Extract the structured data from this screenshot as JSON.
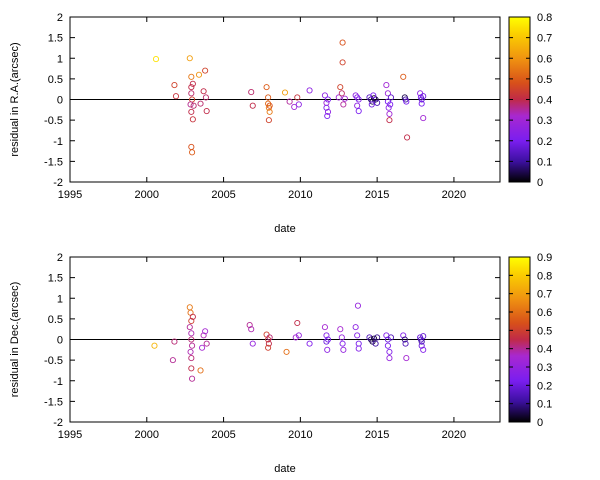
{
  "chart_data": [
    {
      "type": "scatter",
      "xlabel": "date",
      "ylabel": "residual in R.A.(arcsec)",
      "xlim": [
        1995,
        2023
      ],
      "ylim": [
        -2,
        2
      ],
      "xticks": [
        "1995",
        "2000",
        "2005",
        "2010",
        "2015",
        "2020"
      ],
      "yticks": [
        "-2",
        "-1.5",
        "-1",
        "-0.5",
        "0",
        "0.5",
        "1",
        "1.5",
        "2"
      ],
      "colorbar": {
        "range": [
          0,
          0.8
        ],
        "ticks": [
          "0",
          "0.1",
          "0.2",
          "0.3",
          "0.4",
          "0.5",
          "0.6",
          "0.7",
          "0.8"
        ]
      },
      "zero_line": 0,
      "points": [
        {
          "x": 2000.6,
          "y": 0.98,
          "c": 0.75
        },
        {
          "x": 2001.8,
          "y": 0.35,
          "c": 0.45
        },
        {
          "x": 2001.9,
          "y": 0.08,
          "c": 0.42
        },
        {
          "x": 2002.8,
          "y": 1.0,
          "c": 0.62
        },
        {
          "x": 2002.9,
          "y": 0.55,
          "c": 0.55
        },
        {
          "x": 2002.9,
          "y": 0.3,
          "c": 0.4
        },
        {
          "x": 2002.9,
          "y": 0.15,
          "c": 0.38
        },
        {
          "x": 2002.95,
          "y": 0.0,
          "c": 0.45
        },
        {
          "x": 2002.85,
          "y": -0.12,
          "c": 0.36
        },
        {
          "x": 2002.9,
          "y": -0.3,
          "c": 0.4
        },
        {
          "x": 2003.0,
          "y": -0.48,
          "c": 0.42
        },
        {
          "x": 2002.9,
          "y": -1.15,
          "c": 0.48
        },
        {
          "x": 2002.95,
          "y": -1.28,
          "c": 0.5
        },
        {
          "x": 2003.0,
          "y": 0.38,
          "c": 0.4
        },
        {
          "x": 2003.05,
          "y": -0.15,
          "c": 0.38
        },
        {
          "x": 2003.4,
          "y": 0.6,
          "c": 0.6
        },
        {
          "x": 2003.5,
          "y": -0.1,
          "c": 0.38
        },
        {
          "x": 2003.7,
          "y": 0.2,
          "c": 0.4
        },
        {
          "x": 2003.8,
          "y": 0.7,
          "c": 0.45
        },
        {
          "x": 2003.9,
          "y": -0.28,
          "c": 0.4
        },
        {
          "x": 2003.85,
          "y": 0.05,
          "c": 0.38
        },
        {
          "x": 2006.8,
          "y": 0.18,
          "c": 0.38
        },
        {
          "x": 2006.9,
          "y": -0.15,
          "c": 0.4
        },
        {
          "x": 2007.8,
          "y": 0.3,
          "c": 0.5
        },
        {
          "x": 2007.9,
          "y": 0.05,
          "c": 0.5
        },
        {
          "x": 2007.9,
          "y": -0.1,
          "c": 0.52
        },
        {
          "x": 2007.95,
          "y": -0.2,
          "c": 0.55
        },
        {
          "x": 2008.0,
          "y": -0.3,
          "c": 0.55
        },
        {
          "x": 2007.95,
          "y": -0.5,
          "c": 0.45
        },
        {
          "x": 2008.0,
          "y": -0.15,
          "c": 0.48
        },
        {
          "x": 2009.0,
          "y": 0.17,
          "c": 0.62
        },
        {
          "x": 2009.3,
          "y": -0.05,
          "c": 0.35
        },
        {
          "x": 2009.6,
          "y": -0.18,
          "c": 0.3
        },
        {
          "x": 2009.8,
          "y": 0.05,
          "c": 0.42
        },
        {
          "x": 2009.9,
          "y": -0.12,
          "c": 0.25
        },
        {
          "x": 2010.6,
          "y": 0.22,
          "c": 0.25
        },
        {
          "x": 2011.6,
          "y": 0.1,
          "c": 0.25
        },
        {
          "x": 2011.7,
          "y": -0.08,
          "c": 0.3
        },
        {
          "x": 2011.7,
          "y": -0.2,
          "c": 0.22
        },
        {
          "x": 2011.75,
          "y": -0.4,
          "c": 0.2
        },
        {
          "x": 2011.8,
          "y": -0.3,
          "c": 0.25
        },
        {
          "x": 2011.8,
          "y": 0.0,
          "c": 0.2
        },
        {
          "x": 2012.5,
          "y": 0.05,
          "c": 0.3
        },
        {
          "x": 2012.6,
          "y": 0.3,
          "c": 0.45
        },
        {
          "x": 2012.75,
          "y": 1.38,
          "c": 0.48
        },
        {
          "x": 2012.75,
          "y": 0.9,
          "c": 0.45
        },
        {
          "x": 2012.7,
          "y": 0.15,
          "c": 0.38
        },
        {
          "x": 2012.8,
          "y": -0.12,
          "c": 0.35
        },
        {
          "x": 2012.9,
          "y": 0.02,
          "c": 0.3
        },
        {
          "x": 2013.6,
          "y": 0.1,
          "c": 0.25
        },
        {
          "x": 2013.7,
          "y": 0.05,
          "c": 0.22
        },
        {
          "x": 2013.7,
          "y": -0.15,
          "c": 0.25
        },
        {
          "x": 2013.8,
          "y": -0.28,
          "c": 0.2
        },
        {
          "x": 2013.8,
          "y": 0.0,
          "c": 0.22
        },
        {
          "x": 2014.5,
          "y": 0.05,
          "c": 0.15
        },
        {
          "x": 2014.6,
          "y": 0.0,
          "c": 0.08
        },
        {
          "x": 2014.7,
          "y": -0.05,
          "c": 0.05
        },
        {
          "x": 2014.8,
          "y": 0.03,
          "c": 0.02
        },
        {
          "x": 2014.9,
          "y": 0.0,
          "c": 0.06
        },
        {
          "x": 2015.0,
          "y": -0.08,
          "c": 0.12
        },
        {
          "x": 2014.65,
          "y": -0.12,
          "c": 0.18
        },
        {
          "x": 2014.75,
          "y": 0.1,
          "c": 0.2
        },
        {
          "x": 2015.6,
          "y": 0.35,
          "c": 0.3
        },
        {
          "x": 2015.7,
          "y": 0.15,
          "c": 0.28
        },
        {
          "x": 2015.7,
          "y": -0.05,
          "c": 0.2
        },
        {
          "x": 2015.75,
          "y": -0.2,
          "c": 0.25
        },
        {
          "x": 2015.8,
          "y": -0.35,
          "c": 0.3
        },
        {
          "x": 2015.8,
          "y": -0.5,
          "c": 0.4
        },
        {
          "x": 2015.9,
          "y": 0.05,
          "c": 0.15
        },
        {
          "x": 2015.85,
          "y": -0.12,
          "c": 0.2
        },
        {
          "x": 2016.7,
          "y": 0.55,
          "c": 0.5
        },
        {
          "x": 2016.8,
          "y": 0.05,
          "c": 0.05
        },
        {
          "x": 2016.85,
          "y": 0.0,
          "c": 0.1
        },
        {
          "x": 2016.9,
          "y": -0.05,
          "c": 0.2
        },
        {
          "x": 2016.95,
          "y": -0.92,
          "c": 0.4
        },
        {
          "x": 2017.8,
          "y": 0.15,
          "c": 0.25
        },
        {
          "x": 2017.85,
          "y": 0.05,
          "c": 0.2
        },
        {
          "x": 2017.9,
          "y": 0.0,
          "c": 0.15
        },
        {
          "x": 2017.9,
          "y": -0.1,
          "c": 0.2
        },
        {
          "x": 2018.0,
          "y": -0.45,
          "c": 0.3
        },
        {
          "x": 2018.0,
          "y": 0.08,
          "c": 0.18
        }
      ]
    },
    {
      "type": "scatter",
      "xlabel": "date",
      "ylabel": "residual in Dec.(arcsec)",
      "xlim": [
        1995,
        2023
      ],
      "ylim": [
        -2,
        2
      ],
      "xticks": [
        "1995",
        "2000",
        "2005",
        "2010",
        "2015",
        "2020"
      ],
      "yticks": [
        "-2",
        "-1.5",
        "-1",
        "-0.5",
        "0",
        "0.5",
        "1",
        "1.5",
        "2"
      ],
      "colorbar": {
        "range": [
          0,
          0.9
        ],
        "ticks": [
          "0",
          "0.1",
          "0.2",
          "0.3",
          "0.4",
          "0.5",
          "0.6",
          "0.7",
          "0.8",
          "0.9"
        ]
      },
      "zero_line": 0,
      "points": [
        {
          "x": 2000.5,
          "y": -0.15,
          "c": 0.75
        },
        {
          "x": 2001.7,
          "y": -0.5,
          "c": 0.4
        },
        {
          "x": 2001.8,
          "y": -0.05,
          "c": 0.42
        },
        {
          "x": 2002.8,
          "y": 0.78,
          "c": 0.62
        },
        {
          "x": 2002.85,
          "y": 0.65,
          "c": 0.6
        },
        {
          "x": 2002.9,
          "y": 0.45,
          "c": 0.5
        },
        {
          "x": 2002.8,
          "y": 0.3,
          "c": 0.4
        },
        {
          "x": 2002.9,
          "y": 0.15,
          "c": 0.38
        },
        {
          "x": 2002.9,
          "y": 0.0,
          "c": 0.42
        },
        {
          "x": 2002.95,
          "y": -0.15,
          "c": 0.4
        },
        {
          "x": 2002.85,
          "y": -0.3,
          "c": 0.38
        },
        {
          "x": 2002.9,
          "y": -0.45,
          "c": 0.42
        },
        {
          "x": 2002.9,
          "y": -0.7,
          "c": 0.45
        },
        {
          "x": 2002.95,
          "y": -0.95,
          "c": 0.4
        },
        {
          "x": 2003.0,
          "y": 0.55,
          "c": 0.45
        },
        {
          "x": 2003.5,
          "y": -0.75,
          "c": 0.6
        },
        {
          "x": 2003.6,
          "y": -0.2,
          "c": 0.35
        },
        {
          "x": 2003.7,
          "y": 0.1,
          "c": 0.38
        },
        {
          "x": 2003.8,
          "y": 0.2,
          "c": 0.35
        },
        {
          "x": 2003.9,
          "y": -0.1,
          "c": 0.4
        },
        {
          "x": 2006.7,
          "y": 0.35,
          "c": 0.4
        },
        {
          "x": 2006.8,
          "y": 0.25,
          "c": 0.38
        },
        {
          "x": 2006.9,
          "y": -0.1,
          "c": 0.3
        },
        {
          "x": 2007.8,
          "y": 0.12,
          "c": 0.5
        },
        {
          "x": 2007.9,
          "y": 0.0,
          "c": 0.48
        },
        {
          "x": 2007.95,
          "y": -0.1,
          "c": 0.45
        },
        {
          "x": 2007.9,
          "y": -0.2,
          "c": 0.5
        },
        {
          "x": 2008.0,
          "y": 0.05,
          "c": 0.42
        },
        {
          "x": 2009.1,
          "y": -0.3,
          "c": 0.6
        },
        {
          "x": 2009.7,
          "y": 0.05,
          "c": 0.35
        },
        {
          "x": 2009.8,
          "y": 0.4,
          "c": 0.45
        },
        {
          "x": 2009.9,
          "y": 0.1,
          "c": 0.3
        },
        {
          "x": 2010.6,
          "y": -0.1,
          "c": 0.25
        },
        {
          "x": 2011.6,
          "y": 0.3,
          "c": 0.35
        },
        {
          "x": 2011.7,
          "y": 0.1,
          "c": 0.25
        },
        {
          "x": 2011.7,
          "y": -0.05,
          "c": 0.2
        },
        {
          "x": 2011.75,
          "y": -0.25,
          "c": 0.28
        },
        {
          "x": 2011.8,
          "y": 0.0,
          "c": 0.22
        },
        {
          "x": 2012.6,
          "y": 0.25,
          "c": 0.35
        },
        {
          "x": 2012.7,
          "y": 0.05,
          "c": 0.3
        },
        {
          "x": 2012.75,
          "y": -0.1,
          "c": 0.25
        },
        {
          "x": 2012.8,
          "y": -0.25,
          "c": 0.3
        },
        {
          "x": 2013.6,
          "y": 0.3,
          "c": 0.28
        },
        {
          "x": 2013.7,
          "y": 0.1,
          "c": 0.25
        },
        {
          "x": 2013.75,
          "y": 0.82,
          "c": 0.3
        },
        {
          "x": 2013.8,
          "y": -0.1,
          "c": 0.22
        },
        {
          "x": 2013.8,
          "y": -0.22,
          "c": 0.25
        },
        {
          "x": 2014.5,
          "y": 0.05,
          "c": 0.15
        },
        {
          "x": 2014.6,
          "y": 0.0,
          "c": 0.08
        },
        {
          "x": 2014.7,
          "y": -0.05,
          "c": 0.05
        },
        {
          "x": 2014.8,
          "y": 0.02,
          "c": 0.03
        },
        {
          "x": 2014.9,
          "y": -0.1,
          "c": 0.12
        },
        {
          "x": 2015.0,
          "y": 0.05,
          "c": 0.1
        },
        {
          "x": 2015.6,
          "y": 0.1,
          "c": 0.25
        },
        {
          "x": 2015.7,
          "y": 0.0,
          "c": 0.2
        },
        {
          "x": 2015.7,
          "y": -0.15,
          "c": 0.22
        },
        {
          "x": 2015.8,
          "y": -0.3,
          "c": 0.25
        },
        {
          "x": 2015.8,
          "y": -0.45,
          "c": 0.3
        },
        {
          "x": 2015.9,
          "y": 0.05,
          "c": 0.15
        },
        {
          "x": 2016.7,
          "y": 0.1,
          "c": 0.25
        },
        {
          "x": 2016.8,
          "y": 0.0,
          "c": 0.08
        },
        {
          "x": 2016.85,
          "y": -0.1,
          "c": 0.15
        },
        {
          "x": 2016.9,
          "y": -0.45,
          "c": 0.35
        },
        {
          "x": 2017.8,
          "y": 0.05,
          "c": 0.2
        },
        {
          "x": 2017.85,
          "y": 0.0,
          "c": 0.15
        },
        {
          "x": 2017.9,
          "y": -0.05,
          "c": 0.12
        },
        {
          "x": 2017.9,
          "y": -0.15,
          "c": 0.2
        },
        {
          "x": 2018.0,
          "y": 0.08,
          "c": 0.18
        },
        {
          "x": 2018.0,
          "y": -0.25,
          "c": 0.25
        }
      ]
    }
  ]
}
